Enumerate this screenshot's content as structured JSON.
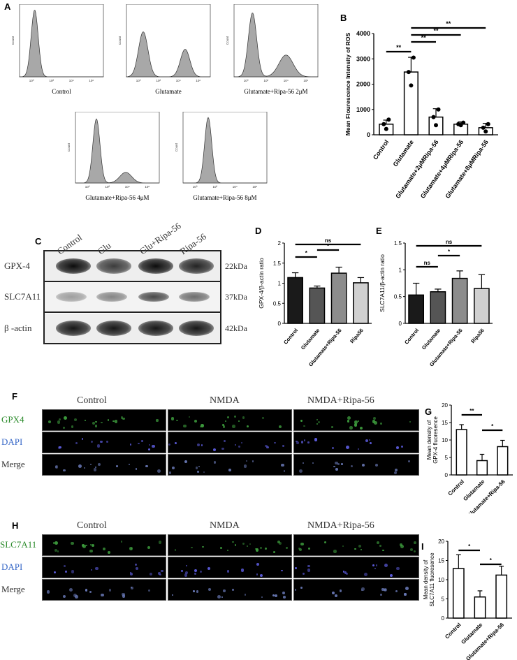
{
  "panels": {
    "A": "A",
    "B": "B",
    "C": "C",
    "D": "D",
    "E": "E",
    "F": "F",
    "G": "G",
    "H": "H",
    "I": "I"
  },
  "flow": {
    "y_label": "Count",
    "x_tick_labels": [
      "10⁰",
      "10²",
      "10⁴",
      "10⁶"
    ],
    "plots": [
      {
        "caption": "Control",
        "peaks": [
          {
            "pos": 0.18,
            "h": 0.92,
            "w": 0.06
          }
        ]
      },
      {
        "caption": "Glutamate",
        "peaks": [
          {
            "pos": 0.2,
            "h": 0.62,
            "w": 0.08
          },
          {
            "pos": 0.7,
            "h": 0.38,
            "w": 0.08
          }
        ]
      },
      {
        "caption": "Glutamate+Ripa-56 2μM",
        "peaks": [
          {
            "pos": 0.22,
            "h": 0.88,
            "w": 0.07
          },
          {
            "pos": 0.62,
            "h": 0.3,
            "w": 0.12
          }
        ]
      },
      {
        "caption": "Glutamate+Ripa-56 4μM",
        "peaks": [
          {
            "pos": 0.25,
            "h": 0.9,
            "w": 0.06
          },
          {
            "pos": 0.6,
            "h": 0.15,
            "w": 0.1
          }
        ]
      },
      {
        "caption": "Glutamate+Ripa-56 8μM",
        "peaks": [
          {
            "pos": 0.3,
            "h": 0.92,
            "w": 0.06
          }
        ]
      }
    ]
  },
  "chart_data": [
    {
      "panel": "B",
      "type": "bar",
      "ylabel": "Mean Flourescence Intensity of ROS",
      "categories": [
        "Control",
        "Glutamate",
        "Glutamate+2μMRipa-56",
        "Glutamate+4μMRipa-56",
        "Glutamate+8μMRipa-56"
      ],
      "values": [
        420,
        2480,
        700,
        420,
        280
      ],
      "errors": [
        160,
        580,
        330,
        90,
        170
      ],
      "points": [
        [
          420,
          230,
          600
        ],
        [
          2480,
          1950,
          3050
        ],
        [
          700,
          380,
          1000
        ],
        [
          420,
          380,
          480
        ],
        [
          280,
          130,
          420
        ]
      ],
      "ylim": [
        0,
        4000
      ],
      "yticks": [
        0,
        1000,
        2000,
        3000,
        4000
      ],
      "significance": [
        {
          "from": 0,
          "to": 1,
          "label": "**"
        },
        {
          "from": 1,
          "to": 2,
          "label": "**"
        },
        {
          "from": 1,
          "to": 3,
          "label": "**"
        },
        {
          "from": 1,
          "to": 4,
          "label": "**"
        }
      ]
    },
    {
      "panel": "D",
      "type": "bar",
      "ylabel": "GPX-4/β-actin ratio",
      "categories": [
        "Control",
        "Glutamate",
        "Glutamate+Ripa-56",
        "Ripa56"
      ],
      "values": [
        1.14,
        0.88,
        1.25,
        1.01
      ],
      "errors": [
        0.12,
        0.05,
        0.15,
        0.13
      ],
      "colors": [
        "#1a1a1a",
        "#555555",
        "#8c8c8c",
        "#d0d0d0"
      ],
      "ylim": [
        0,
        2.0
      ],
      "yticks": [
        0,
        0.5,
        1.0,
        1.5,
        2.0
      ],
      "significance": [
        {
          "from": 0,
          "to": 1,
          "label": "*"
        },
        {
          "from": 1,
          "to": 2,
          "label": "*"
        },
        {
          "from": 0,
          "to": 3,
          "label": "ns"
        }
      ]
    },
    {
      "panel": "E",
      "type": "bar",
      "ylabel": "SLC7A11/β-actin ratio",
      "categories": [
        "Control",
        "Glutamate",
        "Glutamate+Ripa-56",
        "Ripa56"
      ],
      "values": [
        0.53,
        0.59,
        0.84,
        0.65
      ],
      "errors": [
        0.22,
        0.05,
        0.14,
        0.26
      ],
      "colors": [
        "#1a1a1a",
        "#555555",
        "#8c8c8c",
        "#d0d0d0"
      ],
      "ylim": [
        0,
        1.5
      ],
      "yticks": [
        0,
        0.5,
        1.0,
        1.5
      ],
      "significance": [
        {
          "from": 0,
          "to": 1,
          "label": "ns"
        },
        {
          "from": 1,
          "to": 2,
          "label": "*"
        },
        {
          "from": 0,
          "to": 3,
          "label": "ns"
        }
      ]
    },
    {
      "panel": "G",
      "type": "bar",
      "ylabel": "Mean density of GPX-4 fluoresence",
      "categories": [
        "Control",
        "Glutamate",
        "Glutamate+Ripa-56"
      ],
      "values": [
        13.0,
        4.1,
        8.1
      ],
      "errors": [
        1.4,
        1.8,
        1.8
      ],
      "ylim": [
        0,
        20
      ],
      "yticks": [
        0,
        5,
        10,
        15,
        20
      ],
      "significance": [
        {
          "from": 0,
          "to": 1,
          "label": "**"
        },
        {
          "from": 1,
          "to": 2,
          "label": "*"
        }
      ]
    },
    {
      "panel": "I",
      "type": "bar",
      "ylabel": "Mean density of SLC7A11 fluoresence",
      "categories": [
        "Control",
        "Glutamate",
        "Glutamate+Ripa-56"
      ],
      "values": [
        12.9,
        5.5,
        11.2
      ],
      "errors": [
        3.6,
        1.6,
        2.3
      ],
      "ylim": [
        0,
        20
      ],
      "yticks": [
        0,
        5,
        10,
        15,
        20
      ],
      "significance": [
        {
          "from": 0,
          "to": 1,
          "label": "*"
        },
        {
          "from": 1,
          "to": 2,
          "label": "*"
        }
      ]
    }
  ],
  "western": {
    "lanes": [
      "Control",
      "Glu",
      "Glu+Ripa-56",
      "Ripa-56"
    ],
    "rows": [
      {
        "name": "GPX-4",
        "kda": "22kDa",
        "intensity": [
          0.95,
          0.75,
          0.95,
          0.85
        ]
      },
      {
        "name": "SLC7A11",
        "kda": "37kDa",
        "intensity": [
          0.35,
          0.45,
          0.7,
          0.55
        ]
      },
      {
        "name": "β -actin",
        "kda": "42kDa",
        "intensity": [
          0.9,
          0.9,
          0.9,
          0.9
        ]
      }
    ]
  },
  "if_F": {
    "columns": [
      "Control",
      "NMDA",
      "NMDA+Ripa-56"
    ],
    "rows": [
      {
        "label": "GPX4",
        "label_color": "#2a8a2a",
        "dot_color": "#3c9a3c"
      },
      {
        "label": "DAPI",
        "label_color": "#3a6ac8",
        "dot_color": "#5a5ad8"
      },
      {
        "label": "Merge",
        "label_color": "#333333",
        "dot_color": "#6a7ab8"
      }
    ]
  },
  "if_H": {
    "columns": [
      "Control",
      "NMDA",
      "NMDA+Ripa-56"
    ],
    "rows": [
      {
        "label": "SLC7A11",
        "label_color": "#2a8a2a",
        "dot_color": "#3c9a3c"
      },
      {
        "label": "DAPI",
        "label_color": "#3a6ac8",
        "dot_color": "#5a5ad8"
      },
      {
        "label": "Merge",
        "label_color": "#333333",
        "dot_color": "#6a7ab8"
      }
    ]
  }
}
